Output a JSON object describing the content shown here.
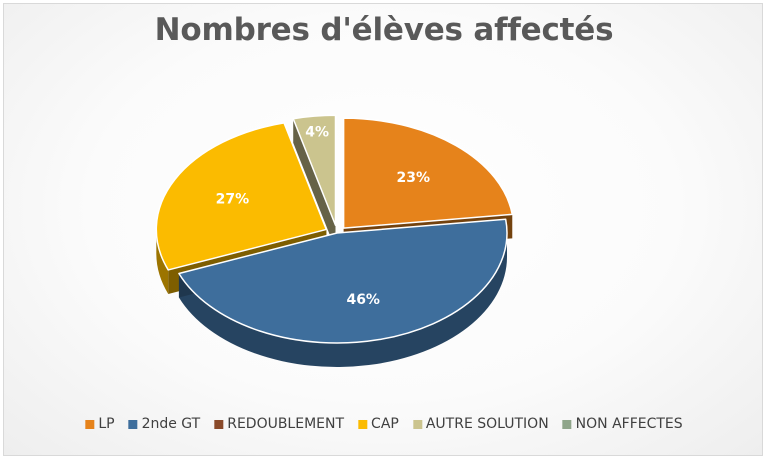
{
  "chart_data": {
    "type": "pie",
    "title": "Nombres d'élèves affectés",
    "legend_position": "bottom",
    "slices": [
      {
        "name": "LP",
        "value": 23,
        "label": "23%",
        "color": "#E6831B"
      },
      {
        "name": "2nde GT",
        "value": 46,
        "label": "46%",
        "color": "#3E6E9C"
      },
      {
        "name": "REDOUBLEMENT",
        "value": 0,
        "label": "",
        "color": "#8A4A2A"
      },
      {
        "name": "CAP",
        "value": 27,
        "label": "27%",
        "color": "#FBBB00"
      },
      {
        "name": "AUTRE SOLUTION",
        "value": 4,
        "label": "4%",
        "color": "#CBC48E"
      },
      {
        "name": "NON AFFECTES",
        "value": 0,
        "label": "",
        "color": "#8FA58A"
      }
    ]
  }
}
